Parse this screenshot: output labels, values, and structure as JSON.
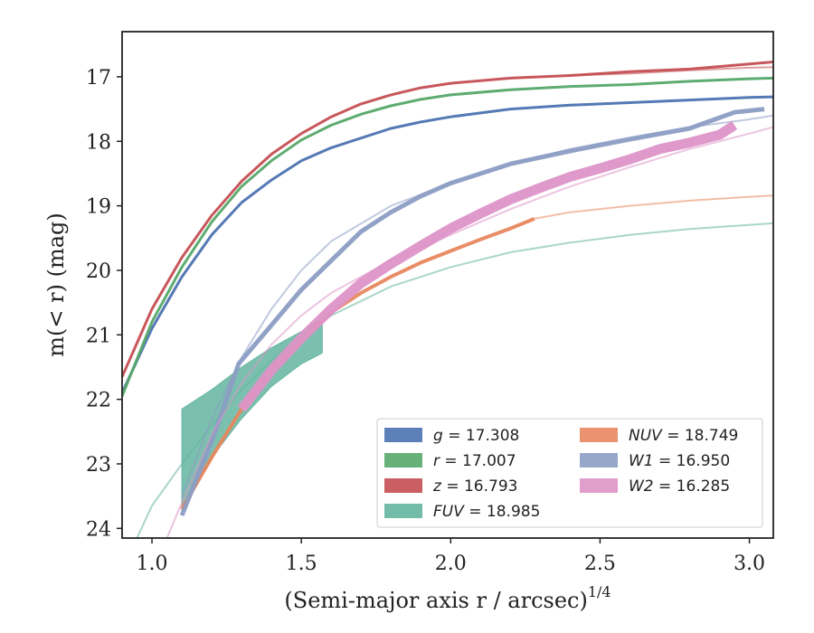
{
  "chart_data": {
    "type": "line",
    "title": "",
    "xlabel": "(Semi-major axis r / arcsec)",
    "xlabel_exponent": "1/4",
    "ylabel": "m(< r) (mag)",
    "xlim": [
      0.9,
      3.08
    ],
    "ylim": [
      24.15,
      16.3
    ],
    "y_inverted": true,
    "grid": false,
    "legend_position": "lower-right",
    "xticks": [
      "1.0",
      "1.5",
      "2.0",
      "2.5",
      "3.0"
    ],
    "yticks": [
      "17",
      "18",
      "19",
      "20",
      "21",
      "22",
      "23",
      "24"
    ],
    "series": [
      {
        "name": "g = 17.308",
        "label_var": "g",
        "label_val": "17.308",
        "color": "#4c72b0",
        "data": [
          [
            0.9,
            21.9
          ],
          [
            1.0,
            20.9
          ],
          [
            1.1,
            20.1
          ],
          [
            1.2,
            19.45
          ],
          [
            1.3,
            18.95
          ],
          [
            1.4,
            18.6
          ],
          [
            1.5,
            18.3
          ],
          [
            1.6,
            18.1
          ],
          [
            1.7,
            17.95
          ],
          [
            1.8,
            17.8
          ],
          [
            1.9,
            17.7
          ],
          [
            2.0,
            17.62
          ],
          [
            2.2,
            17.5
          ],
          [
            2.4,
            17.44
          ],
          [
            2.6,
            17.4
          ],
          [
            2.8,
            17.36
          ],
          [
            3.0,
            17.32
          ],
          [
            3.08,
            17.31
          ]
        ],
        "model": []
      },
      {
        "name": "r = 17.007",
        "label_var": "r",
        "label_val": "17.007",
        "color": "#55a868",
        "data": [
          [
            0.9,
            21.95
          ],
          [
            1.0,
            20.8
          ],
          [
            1.1,
            19.95
          ],
          [
            1.2,
            19.25
          ],
          [
            1.3,
            18.7
          ],
          [
            1.4,
            18.3
          ],
          [
            1.5,
            17.98
          ],
          [
            1.6,
            17.75
          ],
          [
            1.7,
            17.58
          ],
          [
            1.8,
            17.45
          ],
          [
            1.9,
            17.35
          ],
          [
            2.0,
            17.28
          ],
          [
            2.2,
            17.2
          ],
          [
            2.4,
            17.15
          ],
          [
            2.6,
            17.12
          ],
          [
            2.8,
            17.07
          ],
          [
            3.0,
            17.03
          ],
          [
            3.08,
            17.02
          ]
        ],
        "model": []
      },
      {
        "name": "z = 16.793",
        "label_var": "z",
        "label_val": "16.793",
        "color": "#c44e52",
        "data": [
          [
            0.9,
            21.65
          ],
          [
            1.0,
            20.6
          ],
          [
            1.1,
            19.8
          ],
          [
            1.2,
            19.15
          ],
          [
            1.3,
            18.62
          ],
          [
            1.4,
            18.2
          ],
          [
            1.5,
            17.88
          ],
          [
            1.6,
            17.62
          ],
          [
            1.7,
            17.42
          ],
          [
            1.8,
            17.28
          ],
          [
            1.9,
            17.17
          ],
          [
            2.0,
            17.1
          ],
          [
            2.2,
            17.02
          ],
          [
            2.4,
            16.98
          ],
          [
            2.6,
            16.92
          ],
          [
            2.8,
            16.88
          ],
          [
            3.0,
            16.8
          ],
          [
            3.08,
            16.77
          ]
        ],
        "model": [
          [
            2.4,
            16.98
          ],
          [
            2.6,
            16.95
          ],
          [
            2.8,
            16.9
          ],
          [
            3.0,
            16.86
          ],
          [
            3.08,
            16.85
          ]
        ]
      },
      {
        "name": "FUV = 18.985",
        "label_var": "FUV",
        "label_val": "18.985",
        "color": "#64b5a0",
        "band_upper": [
          [
            1.1,
            22.15
          ],
          [
            1.2,
            21.85
          ],
          [
            1.3,
            21.5
          ],
          [
            1.4,
            21.2
          ],
          [
            1.5,
            20.95
          ],
          [
            1.57,
            20.75
          ]
        ],
        "band_lower": [
          [
            1.1,
            23.75
          ],
          [
            1.2,
            22.9
          ],
          [
            1.3,
            22.3
          ],
          [
            1.4,
            21.8
          ],
          [
            1.5,
            21.45
          ],
          [
            1.57,
            21.28
          ]
        ],
        "model": [
          [
            0.95,
            24.15
          ],
          [
            1.0,
            23.65
          ],
          [
            1.1,
            23.0
          ],
          [
            1.2,
            22.4
          ],
          [
            1.3,
            21.85
          ],
          [
            1.4,
            21.4
          ],
          [
            1.5,
            21.0
          ],
          [
            1.6,
            20.7
          ],
          [
            1.8,
            20.25
          ],
          [
            2.0,
            19.95
          ],
          [
            2.2,
            19.72
          ],
          [
            2.4,
            19.57
          ],
          [
            2.6,
            19.45
          ],
          [
            2.8,
            19.36
          ],
          [
            3.08,
            19.27
          ]
        ]
      },
      {
        "name": "NUV = 18.749",
        "label_var": "NUV",
        "label_val": "18.749",
        "color": "#e8875e",
        "data": [
          [
            1.1,
            23.7
          ],
          [
            1.2,
            22.9
          ],
          [
            1.3,
            22.15
          ],
          [
            1.4,
            21.55
          ],
          [
            1.5,
            21.1
          ],
          [
            1.6,
            20.65
          ],
          [
            1.7,
            20.35
          ],
          [
            1.8,
            20.1
          ],
          [
            1.9,
            19.88
          ],
          [
            2.0,
            19.7
          ],
          [
            2.1,
            19.52
          ],
          [
            2.2,
            19.35
          ],
          [
            2.28,
            19.2
          ]
        ],
        "model": [
          [
            2.28,
            19.2
          ],
          [
            2.4,
            19.1
          ],
          [
            2.6,
            19.0
          ],
          [
            2.8,
            18.92
          ],
          [
            3.0,
            18.86
          ],
          [
            3.08,
            18.84
          ]
        ]
      },
      {
        "name": "W1 = 16.950",
        "label_var": "W1",
        "label_val": "16.950",
        "color": "#8c9dc4",
        "data": [
          [
            1.1,
            23.8
          ],
          [
            1.2,
            22.65
          ],
          [
            1.29,
            21.45
          ],
          [
            1.4,
            20.85
          ],
          [
            1.5,
            20.3
          ],
          [
            1.6,
            19.85
          ],
          [
            1.7,
            19.4
          ],
          [
            1.8,
            19.1
          ],
          [
            1.9,
            18.85
          ],
          [
            2.0,
            18.65
          ],
          [
            2.2,
            18.35
          ],
          [
            2.4,
            18.15
          ],
          [
            2.6,
            17.97
          ],
          [
            2.8,
            17.8
          ],
          [
            2.95,
            17.55
          ],
          [
            3.05,
            17.5
          ]
        ],
        "model": [
          [
            1.1,
            23.5
          ],
          [
            1.2,
            22.3
          ],
          [
            1.3,
            21.35
          ],
          [
            1.4,
            20.6
          ],
          [
            1.5,
            20.0
          ],
          [
            1.6,
            19.55
          ],
          [
            1.8,
            19.0
          ],
          [
            2.0,
            18.65
          ],
          [
            2.2,
            18.35
          ],
          [
            2.4,
            18.12
          ],
          [
            2.6,
            17.94
          ],
          [
            2.8,
            17.78
          ],
          [
            3.0,
            17.66
          ],
          [
            3.08,
            17.6
          ]
        ]
      },
      {
        "name": "W2 = 16.285",
        "label_var": "W2",
        "label_val": "16.285",
        "color": "#dd94c8",
        "data": [
          [
            1.3,
            22.15
          ],
          [
            1.4,
            21.55
          ],
          [
            1.5,
            21.05
          ],
          [
            1.6,
            20.6
          ],
          [
            1.7,
            20.2
          ],
          [
            1.8,
            19.9
          ],
          [
            1.9,
            19.62
          ],
          [
            2.0,
            19.35
          ],
          [
            2.1,
            19.12
          ],
          [
            2.2,
            18.9
          ],
          [
            2.3,
            18.72
          ],
          [
            2.4,
            18.55
          ],
          [
            2.5,
            18.42
          ],
          [
            2.6,
            18.28
          ],
          [
            2.7,
            18.12
          ],
          [
            2.8,
            18.02
          ],
          [
            2.9,
            17.9
          ],
          [
            2.95,
            17.75
          ]
        ],
        "model": [
          [
            1.05,
            24.15
          ],
          [
            1.1,
            23.6
          ],
          [
            1.2,
            22.55
          ],
          [
            1.3,
            21.75
          ],
          [
            1.4,
            21.15
          ],
          [
            1.5,
            20.7
          ],
          [
            1.6,
            20.35
          ],
          [
            1.8,
            19.85
          ],
          [
            2.0,
            19.45
          ],
          [
            2.2,
            19.05
          ],
          [
            2.4,
            18.7
          ],
          [
            2.6,
            18.4
          ],
          [
            2.8,
            18.12
          ],
          [
            3.0,
            17.88
          ],
          [
            3.08,
            17.78
          ]
        ]
      }
    ]
  }
}
